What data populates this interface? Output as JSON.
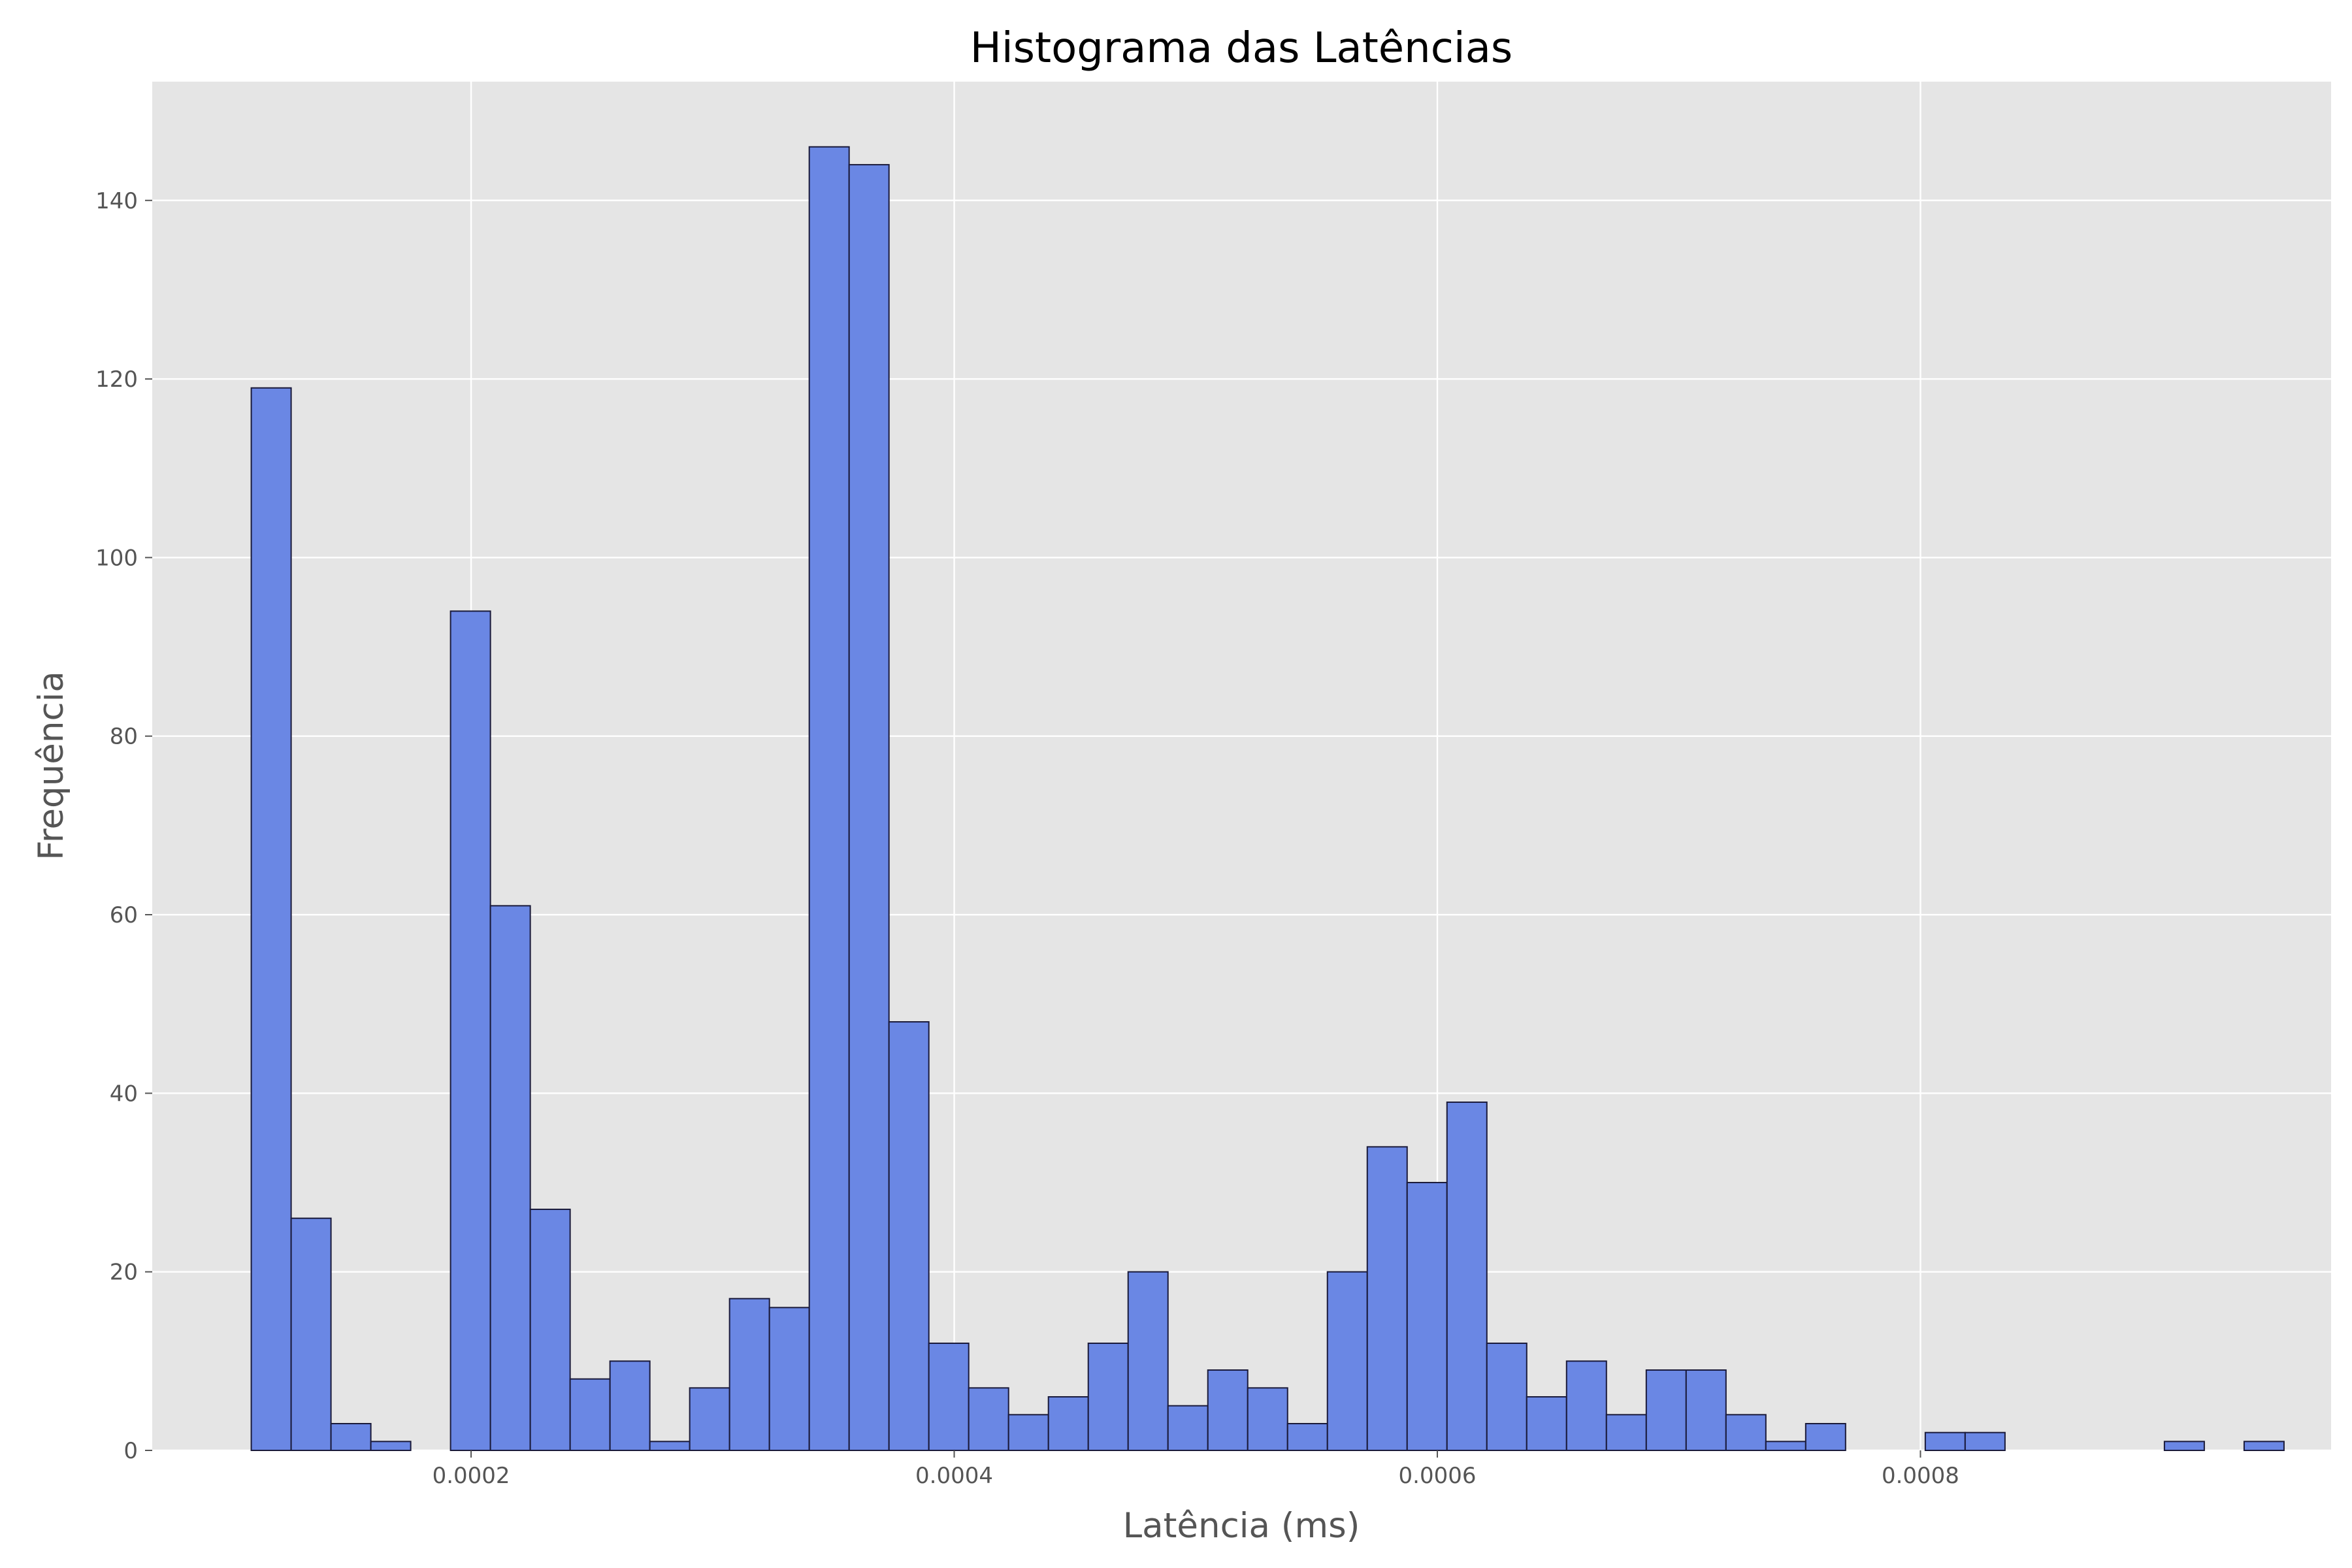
{
  "chart_data": {
    "type": "histogram",
    "title": "Histograma das Latências",
    "xlabel": "Latência (ms)",
    "ylabel": "Frequência",
    "xlim": [
      6.8e-05,
      0.00097
    ],
    "ylim": [
      0,
      153.3
    ],
    "x_ticks": [
      0.0002,
      0.0004,
      0.0006,
      0.0008
    ],
    "x_tick_labels": [
      "0.0002",
      "0.0004",
      "0.0006",
      "0.0008"
    ],
    "y_ticks": [
      0,
      20,
      40,
      60,
      80,
      100,
      120,
      140
    ],
    "y_tick_labels": [
      "0",
      "20",
      "40",
      "60",
      "80",
      "100",
      "120",
      "140"
    ],
    "bin_start": 0.000109,
    "bin_width": 1.65e-05,
    "counts": [
      119,
      26,
      3,
      1,
      0,
      94,
      61,
      27,
      8,
      10,
      1,
      7,
      17,
      16,
      146,
      144,
      48,
      12,
      7,
      4,
      6,
      12,
      20,
      5,
      9,
      7,
      3,
      20,
      34,
      30,
      39,
      12,
      6,
      10,
      4,
      9,
      9,
      4,
      1,
      3,
      0,
      0,
      2,
      2,
      0,
      0,
      0,
      0,
      1,
      0,
      1
    ],
    "grid": true,
    "colors": {
      "bar_fill": "#6a87e4",
      "bar_edge": "#1a1a3a",
      "plot_background": "#e5e5e5",
      "grid": "#ffffff",
      "text": "#555555"
    }
  }
}
